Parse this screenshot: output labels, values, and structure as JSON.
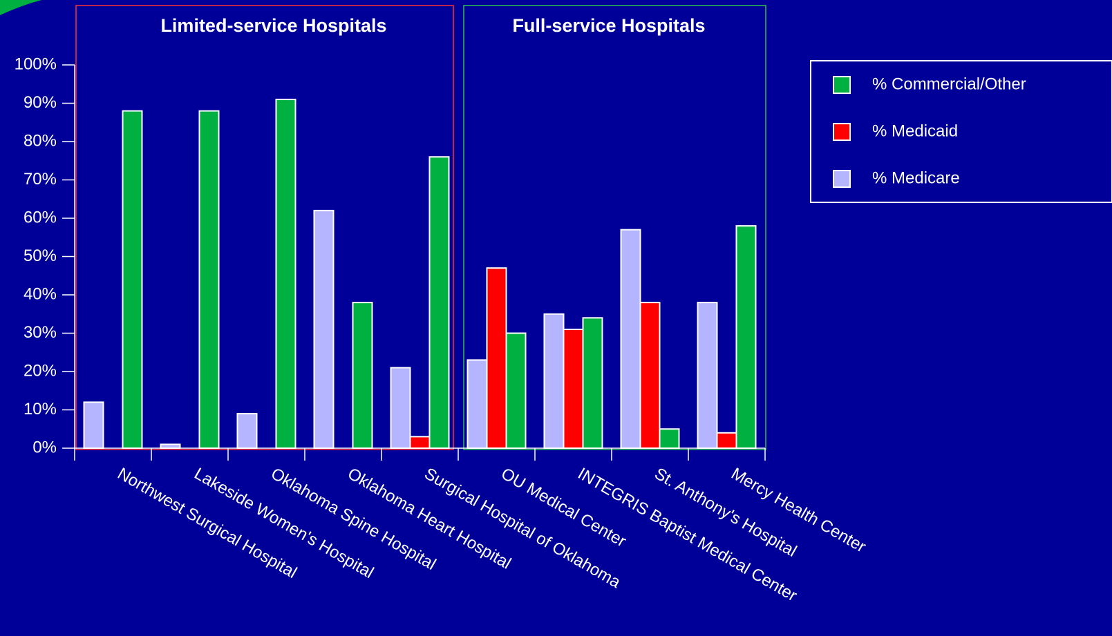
{
  "chart_data": {
    "type": "bar",
    "annotations": [
      "Limited-service Hospitals",
      "Full-service Hospitals"
    ],
    "categories": [
      "Northwest Surgical Hospital",
      "Lakeside Women's Hospital",
      "Oklahoma Spine Hospital",
      "Oklahoma Heart Hospital",
      "Surgical Hospital of Oklahoma",
      "OU Medical Center",
      "INTEGRIS Baptist Medical Center",
      "St. Anthony's Hospital",
      "Mercy Health Center"
    ],
    "series": [
      {
        "name": "% Medicare",
        "color": "#b4b4ff",
        "values": [
          12,
          1,
          9,
          62,
          21,
          23,
          35,
          57,
          38
        ]
      },
      {
        "name": "% Medicaid",
        "color": "#ff0000",
        "values": [
          0,
          0,
          0,
          0,
          3,
          47,
          31,
          38,
          4
        ]
      },
      {
        "name": "% Commercial/Other",
        "color": "#00b040",
        "values": [
          88,
          88,
          91,
          38,
          76,
          30,
          34,
          5,
          58
        ]
      }
    ],
    "ylim": [
      0,
      100
    ],
    "yticks": [
      {
        "value": 0,
        "label": "0%"
      },
      {
        "value": 10,
        "label": "10%"
      },
      {
        "value": 20,
        "label": "20%"
      },
      {
        "value": 30,
        "label": "30%"
      },
      {
        "value": 40,
        "label": "40%"
      },
      {
        "value": 50,
        "label": "50%"
      },
      {
        "value": 60,
        "label": "60%"
      },
      {
        "value": 70,
        "label": "70%"
      },
      {
        "value": 80,
        "label": "80%"
      },
      {
        "value": 90,
        "label": "90%"
      },
      {
        "value": 100,
        "label": "100%"
      }
    ],
    "grid": false
  }
}
